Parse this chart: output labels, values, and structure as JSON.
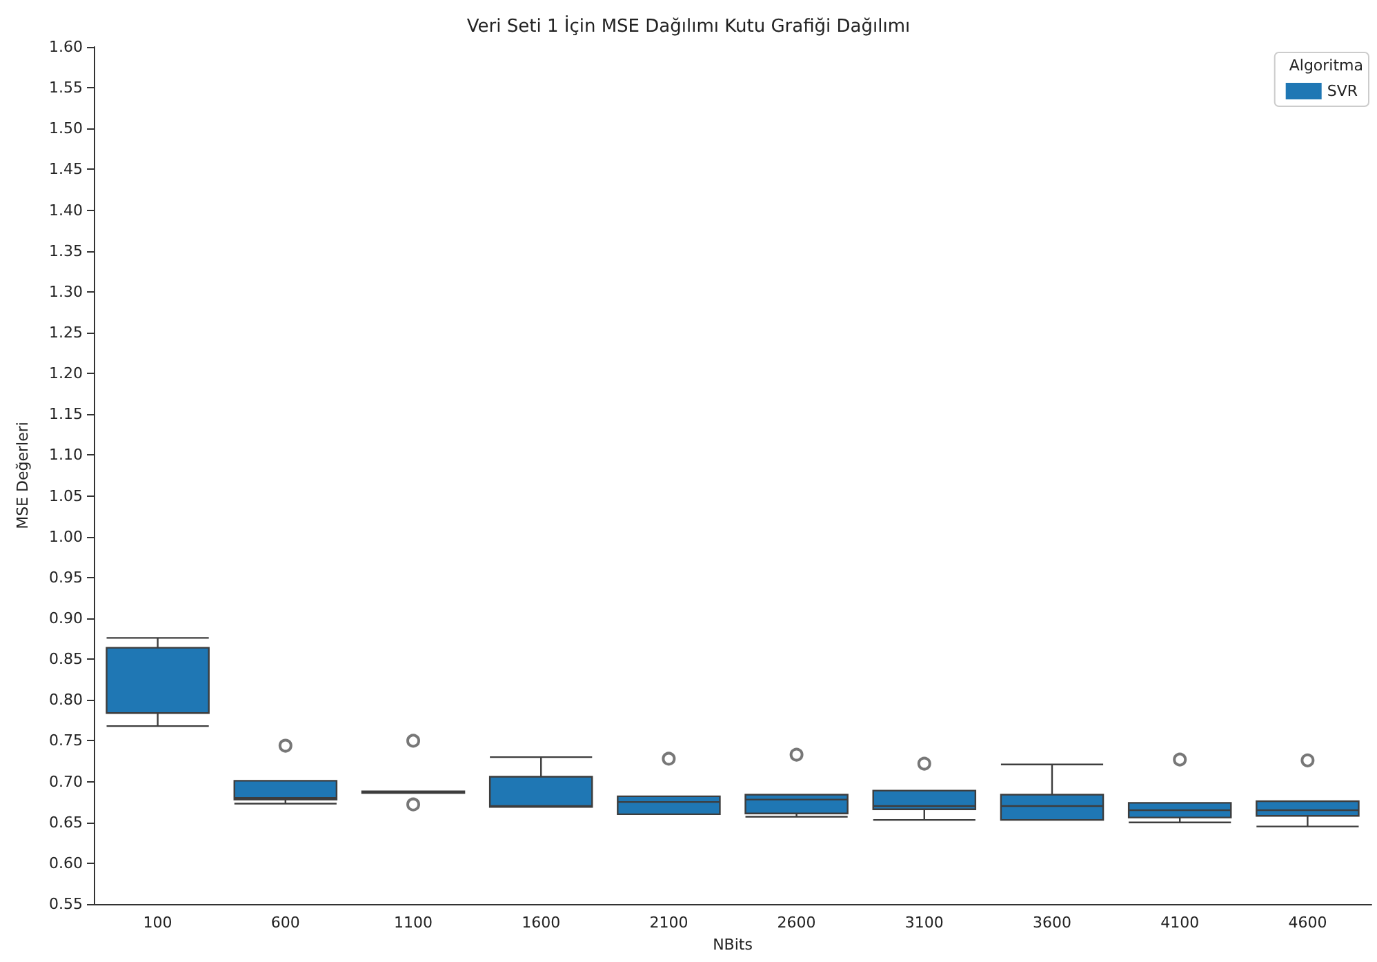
{
  "chart_data": {
    "type": "box",
    "title": "Veri Seti 1 İçin MSE Dağılımı Kutu Grafiği Dağılımı",
    "xlabel": "NBits",
    "ylabel": "MSE Değerleri",
    "legend_title": "Algoritma",
    "legend": "top right",
    "grid": false,
    "categories": [
      "100",
      "600",
      "1100",
      "1600",
      "2100",
      "2600",
      "3100",
      "3600",
      "4100",
      "4600"
    ],
    "ylim": [
      0.55,
      1.6
    ],
    "yticks": [
      {
        "value": 0.55,
        "label": "0.55"
      },
      {
        "value": 0.6,
        "label": "0.60"
      },
      {
        "value": 0.65,
        "label": "0.65"
      },
      {
        "value": 0.7,
        "label": "0.70"
      },
      {
        "value": 0.75,
        "label": "0.75"
      },
      {
        "value": 0.8,
        "label": "0.80"
      },
      {
        "value": 0.85,
        "label": "0.85"
      },
      {
        "value": 0.9,
        "label": "0.90"
      },
      {
        "value": 0.95,
        "label": "0.95"
      },
      {
        "value": 1.0,
        "label": "1.00"
      },
      {
        "value": 1.05,
        "label": "1.05"
      },
      {
        "value": 1.1,
        "label": "1.10"
      },
      {
        "value": 1.15,
        "label": "1.15"
      },
      {
        "value": 1.2,
        "label": "1.20"
      },
      {
        "value": 1.25,
        "label": "1.25"
      },
      {
        "value": 1.3,
        "label": "1.30"
      },
      {
        "value": 1.35,
        "label": "1.35"
      },
      {
        "value": 1.4,
        "label": "1.40"
      },
      {
        "value": 1.45,
        "label": "1.45"
      },
      {
        "value": 1.5,
        "label": "1.50"
      },
      {
        "value": 1.55,
        "label": "1.55"
      },
      {
        "value": 1.6,
        "label": "1.60"
      }
    ],
    "series": [
      {
        "name": "SVR",
        "color": "#1f77b4",
        "boxes": [
          {
            "low": 0.768,
            "q1": 0.784,
            "median": 0.784,
            "q3": 0.864,
            "high": 0.876
          },
          {
            "low": 0.673,
            "q1": 0.678,
            "median": 0.68,
            "q3": 0.701,
            "high": 0.701,
            "outliers": [
              0.744
            ]
          },
          {
            "low": 0.686,
            "q1": 0.686,
            "median": 0.687,
            "q3": 0.688,
            "high": 0.688,
            "outliers": [
              0.75,
              0.672
            ]
          },
          {
            "low": 0.669,
            "q1": 0.669,
            "median": 0.67,
            "q3": 0.706,
            "high": 0.73
          },
          {
            "low": 0.66,
            "q1": 0.66,
            "median": 0.675,
            "q3": 0.682,
            "high": 0.682,
            "outliers": [
              0.728
            ]
          },
          {
            "low": 0.657,
            "q1": 0.661,
            "median": 0.678,
            "q3": 0.684,
            "high": 0.684,
            "outliers": [
              0.733
            ]
          },
          {
            "low": 0.653,
            "q1": 0.666,
            "median": 0.67,
            "q3": 0.689,
            "high": 0.689,
            "outliers": [
              0.722
            ]
          },
          {
            "low": 0.653,
            "q1": 0.653,
            "median": 0.67,
            "q3": 0.684,
            "high": 0.721
          },
          {
            "low": 0.65,
            "q1": 0.656,
            "median": 0.665,
            "q3": 0.674,
            "high": 0.674,
            "outliers": [
              0.727
            ]
          },
          {
            "low": 0.645,
            "q1": 0.658,
            "median": 0.665,
            "q3": 0.676,
            "high": 0.676,
            "outliers": [
              0.726
            ]
          }
        ]
      }
    ]
  }
}
